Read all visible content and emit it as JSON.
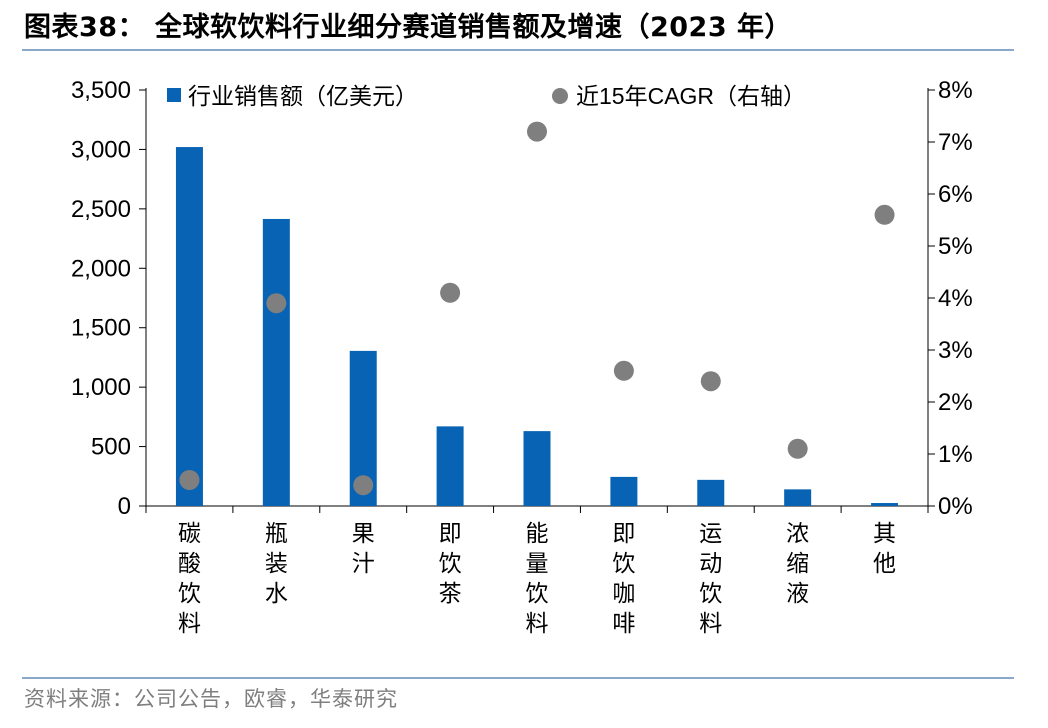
{
  "figure": {
    "title": "图表38： 全球软饮料行业细分赛道销售额及增速（2023 年）",
    "source": "资料来源：公司公告，欧睿，华泰研究"
  },
  "chart_data": {
    "type": "bar",
    "categories": [
      "碳酸饮料",
      "瓶装水",
      "果汁",
      "即饮茶",
      "能量饮料",
      "即饮咖啡",
      "运动饮料",
      "浓缩液",
      "其他"
    ],
    "series": [
      {
        "name": "行业销售额（亿美元）",
        "type": "bar",
        "axis": "left",
        "color": "#0863B5",
        "values": [
          3020,
          2415,
          1305,
          670,
          630,
          245,
          220,
          140,
          25
        ]
      },
      {
        "name": "近15年CAGR（右轴）",
        "type": "scatter",
        "axis": "right",
        "color": "#7f7f7f",
        "values": [
          0.5,
          3.9,
          0.4,
          4.1,
          7.2,
          2.6,
          2.4,
          1.1,
          5.6
        ]
      }
    ],
    "y_left": {
      "lim": [
        0,
        3500
      ],
      "ticks": [
        0,
        500,
        1000,
        1500,
        2000,
        2500,
        3000,
        3500
      ],
      "tick_labels": [
        "0",
        "500",
        "1,000",
        "1,500",
        "2,000",
        "2,500",
        "3,000",
        "3,500"
      ]
    },
    "y_right": {
      "lim": [
        0,
        8
      ],
      "ticks": [
        0,
        1,
        2,
        3,
        4,
        5,
        6,
        7,
        8
      ],
      "tick_labels": [
        "0%",
        "1%",
        "2%",
        "3%",
        "4%",
        "5%",
        "6%",
        "7%",
        "8%"
      ]
    },
    "legend": "top",
    "grid": false
  }
}
